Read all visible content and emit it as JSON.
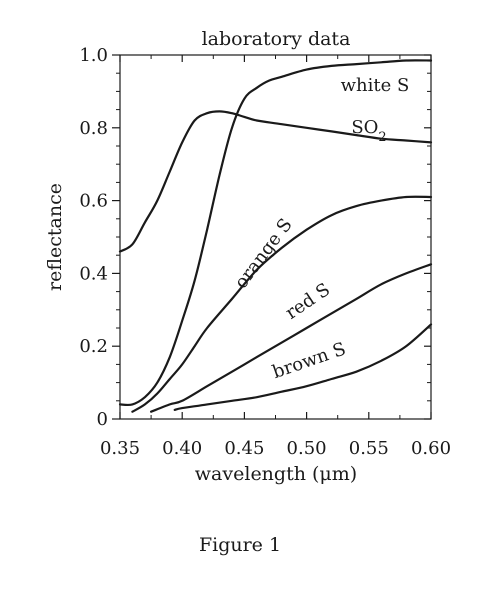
{
  "chart_data": {
    "type": "line",
    "title": "laboratory data",
    "xlabel": "wavelength (μm)",
    "ylabel": "reflectance",
    "caption": "Figure 1",
    "xlim": [
      0.35,
      0.6
    ],
    "ylim": [
      0,
      1.0
    ],
    "x_ticks": [
      "0.35",
      "0.40",
      "0.45",
      "0.50",
      "0.55",
      "0.60"
    ],
    "y_ticks": [
      "0",
      "0.2",
      "0.4",
      "0.6",
      "0.8",
      "1.0"
    ],
    "grid": false,
    "series": [
      {
        "name": "white S",
        "label_rich": [
          {
            "t": "white S"
          }
        ],
        "x": [
          0.35,
          0.36,
          0.37,
          0.38,
          0.39,
          0.4,
          0.41,
          0.42,
          0.43,
          0.44,
          0.45,
          0.46,
          0.47,
          0.48,
          0.5,
          0.52,
          0.54,
          0.56,
          0.58,
          0.6
        ],
        "y": [
          0.04,
          0.04,
          0.06,
          0.1,
          0.17,
          0.27,
          0.38,
          0.52,
          0.67,
          0.8,
          0.88,
          0.91,
          0.93,
          0.94,
          0.96,
          0.97,
          0.975,
          0.98,
          0.985,
          0.985
        ]
      },
      {
        "name": "SO2",
        "label_rich": [
          {
            "t": "SO"
          },
          {
            "t": "2",
            "sub": true
          }
        ],
        "x": [
          0.35,
          0.36,
          0.37,
          0.38,
          0.39,
          0.4,
          0.41,
          0.42,
          0.43,
          0.44,
          0.45,
          0.46,
          0.48,
          0.5,
          0.52,
          0.54,
          0.56,
          0.58,
          0.6
        ],
        "y": [
          0.46,
          0.48,
          0.54,
          0.6,
          0.68,
          0.76,
          0.82,
          0.84,
          0.845,
          0.84,
          0.83,
          0.82,
          0.81,
          0.8,
          0.79,
          0.78,
          0.77,
          0.765,
          0.76
        ]
      },
      {
        "name": "orange S",
        "label_rich": [
          {
            "t": "orange S"
          }
        ],
        "x": [
          0.36,
          0.37,
          0.38,
          0.39,
          0.4,
          0.41,
          0.42,
          0.44,
          0.46,
          0.48,
          0.5,
          0.52,
          0.54,
          0.56,
          0.58,
          0.6
        ],
        "y": [
          0.02,
          0.04,
          0.07,
          0.11,
          0.15,
          0.2,
          0.25,
          0.33,
          0.41,
          0.47,
          0.52,
          0.56,
          0.585,
          0.6,
          0.61,
          0.61
        ]
      },
      {
        "name": "red S",
        "label_rich": [
          {
            "t": "red S"
          }
        ],
        "x": [
          0.375,
          0.39,
          0.4,
          0.42,
          0.44,
          0.46,
          0.48,
          0.5,
          0.52,
          0.54,
          0.56,
          0.58,
          0.6
        ],
        "y": [
          0.02,
          0.04,
          0.05,
          0.09,
          0.13,
          0.17,
          0.21,
          0.25,
          0.29,
          0.33,
          0.37,
          0.4,
          0.425
        ]
      },
      {
        "name": "brown S",
        "label_rich": [
          {
            "t": "brown S"
          }
        ],
        "x": [
          0.394,
          0.4,
          0.42,
          0.44,
          0.46,
          0.48,
          0.5,
          0.52,
          0.54,
          0.56,
          0.58,
          0.6
        ],
        "y": [
          0.025,
          0.03,
          0.04,
          0.05,
          0.06,
          0.075,
          0.09,
          0.11,
          0.13,
          0.16,
          0.2,
          0.26
        ]
      }
    ]
  }
}
